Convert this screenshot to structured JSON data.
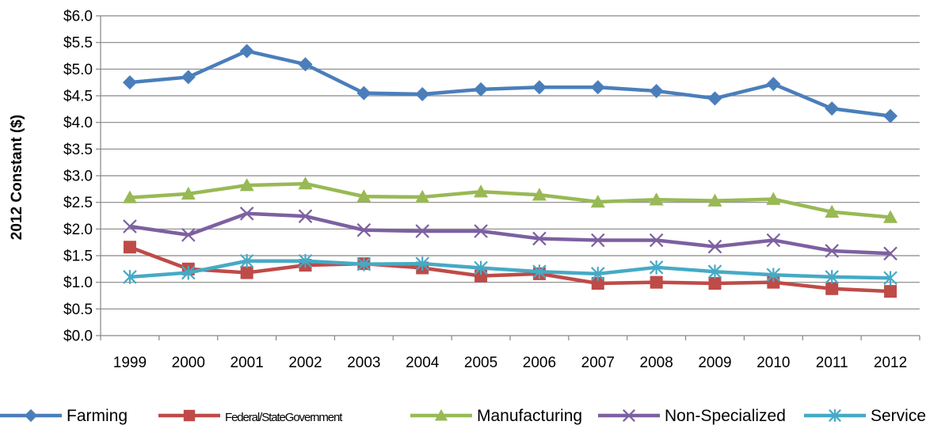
{
  "chart_data": {
    "type": "line",
    "title": "",
    "xlabel": "",
    "ylabel": "2012 Constant ($)",
    "categories": [
      "1999",
      "2000",
      "2001",
      "2002",
      "2003",
      "2004",
      "2005",
      "2006",
      "2007",
      "2008",
      "2009",
      "2010",
      "2011",
      "2012"
    ],
    "y_ticks": [
      "$0.0",
      "$0.5",
      "$1.0",
      "$1.5",
      "$2.0",
      "$2.5",
      "$3.0",
      "$3.5",
      "$4.0",
      "$4.5",
      "$5.0",
      "$5.5",
      "$6.0"
    ],
    "ylim": [
      0,
      6
    ],
    "grid": true,
    "legend_position": "bottom",
    "series": [
      {
        "name": "Farming",
        "color": "#4a7ebb",
        "marker": "diamond",
        "values": [
          4.75,
          4.85,
          5.34,
          5.09,
          4.55,
          4.53,
          4.62,
          4.66,
          4.66,
          4.59,
          4.45,
          4.72,
          4.26,
          4.12
        ]
      },
      {
        "name": "Federal/StateGovernment",
        "color": "#be4b48",
        "marker": "square",
        "values": [
          1.66,
          1.25,
          1.18,
          1.32,
          1.35,
          1.27,
          1.12,
          1.16,
          0.98,
          1.0,
          0.98,
          1.0,
          0.88,
          0.83
        ]
      },
      {
        "name": "Manufacturing",
        "color": "#98b954",
        "marker": "triangle",
        "values": [
          2.59,
          2.66,
          2.82,
          2.85,
          2.61,
          2.6,
          2.7,
          2.64,
          2.51,
          2.55,
          2.53,
          2.56,
          2.32,
          2.22
        ]
      },
      {
        "name": "Non-Specialized",
        "color": "#7d60a0",
        "marker": "x",
        "values": [
          2.05,
          1.89,
          2.29,
          2.24,
          1.98,
          1.96,
          1.96,
          1.82,
          1.79,
          1.79,
          1.67,
          1.79,
          1.59,
          1.54
        ]
      },
      {
        "name": "Services",
        "color": "#46aac5",
        "marker": "asterisk",
        "values": [
          1.1,
          1.18,
          1.4,
          1.4,
          1.34,
          1.35,
          1.27,
          1.2,
          1.16,
          1.28,
          1.2,
          1.14,
          1.1,
          1.08
        ]
      }
    ]
  }
}
